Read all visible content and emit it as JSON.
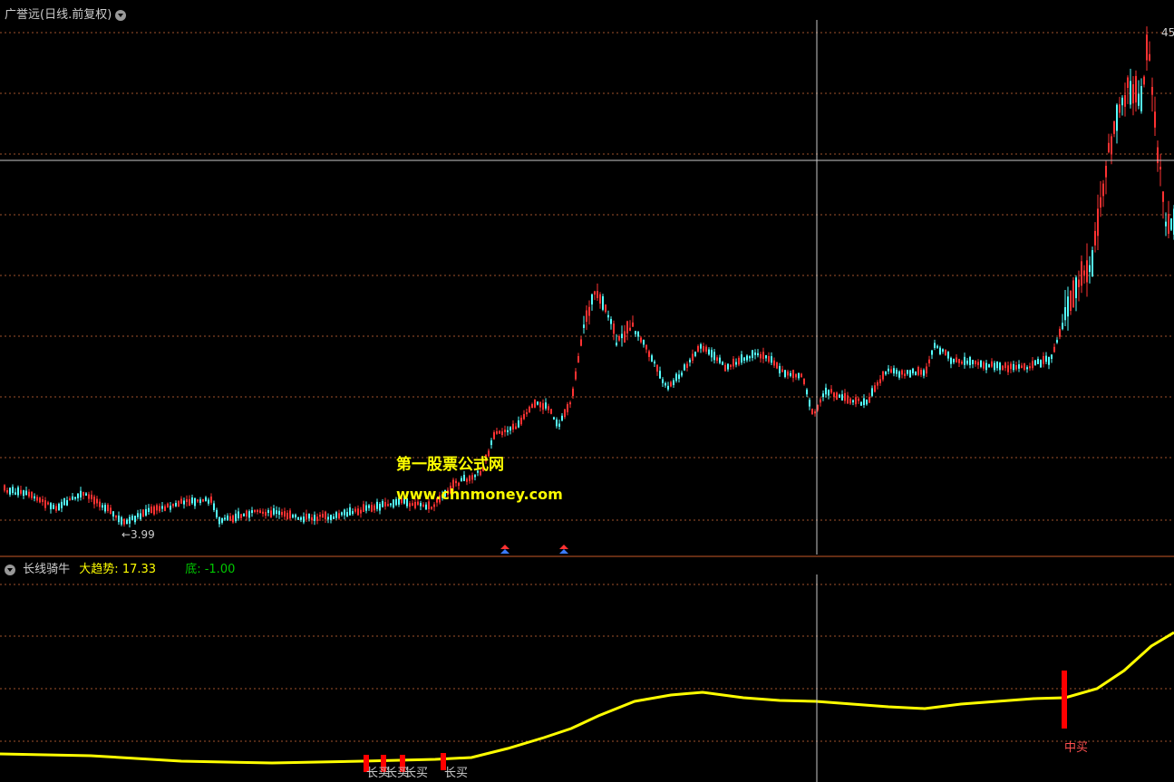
{
  "main_panel": {
    "title": "广誉远(日线.前复权)",
    "low_label": "←3.99",
    "high_label": "45"
  },
  "watermark": {
    "line1": "第一股票公式网",
    "line2": "www.chnmoney.com"
  },
  "indicator_panel": {
    "name": "长线骑牛",
    "trend_label": "大趋势:",
    "trend_value": "17.33",
    "bottom_label": "底:",
    "bottom_value": "-1.00",
    "signals": [
      {
        "label": "长买"
      },
      {
        "label": "长买"
      },
      {
        "label": "长买"
      },
      {
        "label": "长买"
      },
      {
        "label": "中买"
      }
    ]
  },
  "colors": {
    "background": "#000000",
    "up_candle": "#ff3232",
    "down_candle": "#54ffff",
    "grid": "#a0522d",
    "trend_line": "#ffff00",
    "signal_bar": "#ff0000",
    "crosshair": "#c8c8c8",
    "watermark": "#ffff00",
    "bottom_value": "#00c800"
  }
}
